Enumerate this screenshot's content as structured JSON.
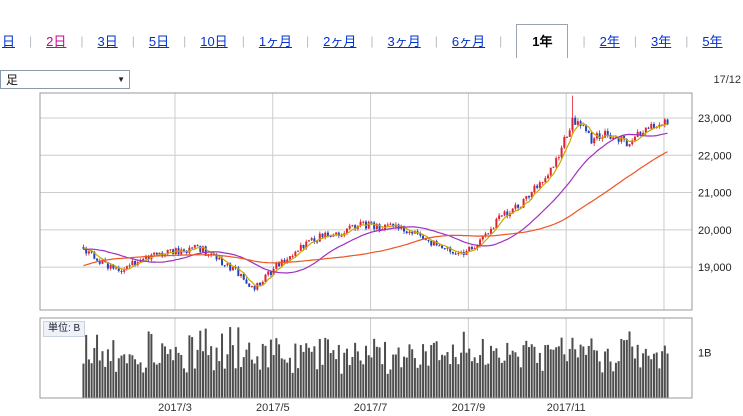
{
  "header": {
    "date_label": "17/12"
  },
  "controls": {
    "chart_type_select": {
      "value": "足"
    }
  },
  "tabs": {
    "link_color": "#0033cc",
    "visited_color": "#cc0099",
    "active_color": "#000000",
    "items": [
      {
        "key": "1d",
        "label": "日",
        "state": "link"
      },
      {
        "key": "2d",
        "label": "2日",
        "state": "visited"
      },
      {
        "key": "3d",
        "label": "3日",
        "state": "link"
      },
      {
        "key": "5d",
        "label": "5日",
        "state": "link"
      },
      {
        "key": "10d",
        "label": "10日",
        "state": "link"
      },
      {
        "key": "1mo",
        "label": "1ヶ月",
        "state": "link"
      },
      {
        "key": "2mo",
        "label": "2ヶ月",
        "state": "link"
      },
      {
        "key": "3mo",
        "label": "3ヶ月",
        "state": "link"
      },
      {
        "key": "6mo",
        "label": "6ヶ月",
        "state": "link"
      },
      {
        "key": "1y",
        "label": "1年",
        "state": "active"
      },
      {
        "key": "2y",
        "label": "2年",
        "state": "link"
      },
      {
        "key": "3y",
        "label": "3年",
        "state": "link"
      },
      {
        "key": "5y",
        "label": "5年",
        "state": "link"
      }
    ]
  },
  "chart_data": {
    "type": "candlestick_with_volume",
    "title": "",
    "seed": 9,
    "candle_range": [
      0.065,
      0.9653
    ],
    "x_axis": {
      "labels": [
        "2017/3",
        "2017/5",
        "2017/7",
        "2017/9",
        "2017/11"
      ],
      "label_positions": [
        0.207,
        0.357,
        0.507,
        0.657,
        0.807
      ],
      "gridline_positions": [
        0.207,
        0.357,
        0.507,
        0.657,
        0.807,
        0.957
      ]
    },
    "y_axis": {
      "side": "right",
      "range": [
        17850,
        23670
      ],
      "ticks": [
        19000,
        20000,
        21000,
        22000,
        23000
      ],
      "tick_labels": [
        "19,000",
        "20,000",
        "21,000",
        "22,000",
        "23,000"
      ]
    },
    "series": {
      "up_color": "#dd2233",
      "down_color": "#2244bb",
      "spike": {
        "f": 0.818,
        "high": 23600
      },
      "moving_averages": [
        {
          "name": "short",
          "window": 5,
          "color": "#c9a800"
        },
        {
          "name": "mid",
          "window": 25,
          "color": "#a030c0"
        },
        {
          "name": "long",
          "window": 60,
          "color": "#ee5522"
        }
      ],
      "trend_anchors": [
        [
          -0.25,
          17400
        ],
        [
          -0.18,
          18000
        ],
        [
          -0.12,
          18650
        ],
        [
          -0.06,
          19200
        ],
        [
          0.0,
          19450
        ],
        [
          0.035,
          19550
        ],
        [
          0.07,
          19450
        ],
        [
          0.1,
          19050
        ],
        [
          0.125,
          18950
        ],
        [
          0.16,
          19250
        ],
        [
          0.2,
          19400
        ],
        [
          0.245,
          19500
        ],
        [
          0.275,
          19200
        ],
        [
          0.3,
          18900
        ],
        [
          0.325,
          18400
        ],
        [
          0.345,
          18700
        ],
        [
          0.37,
          19150
        ],
        [
          0.405,
          19600
        ],
        [
          0.435,
          19850
        ],
        [
          0.465,
          19950
        ],
        [
          0.49,
          20150
        ],
        [
          0.52,
          20100
        ],
        [
          0.55,
          20050
        ],
        [
          0.58,
          19900
        ],
        [
          0.61,
          19550
        ],
        [
          0.64,
          19350
        ],
        [
          0.66,
          19450
        ],
        [
          0.685,
          19950
        ],
        [
          0.705,
          20300
        ],
        [
          0.732,
          20600
        ],
        [
          0.755,
          21000
        ],
        [
          0.775,
          21450
        ],
        [
          0.795,
          22000
        ],
        [
          0.807,
          22500
        ],
        [
          0.818,
          22950
        ],
        [
          0.83,
          22850
        ],
        [
          0.845,
          22400
        ],
        [
          0.865,
          22550
        ],
        [
          0.885,
          22500
        ],
        [
          0.9,
          22350
        ],
        [
          0.92,
          22600
        ],
        [
          0.94,
          22800
        ],
        [
          0.965,
          22900
        ],
        [
          1.0,
          22950
        ]
      ]
    },
    "volume": {
      "unit_label": "単位: B",
      "axis_label": "1B",
      "tick_value": 1,
      "max": 1.75,
      "bar_color": "#4d4d4d"
    }
  }
}
